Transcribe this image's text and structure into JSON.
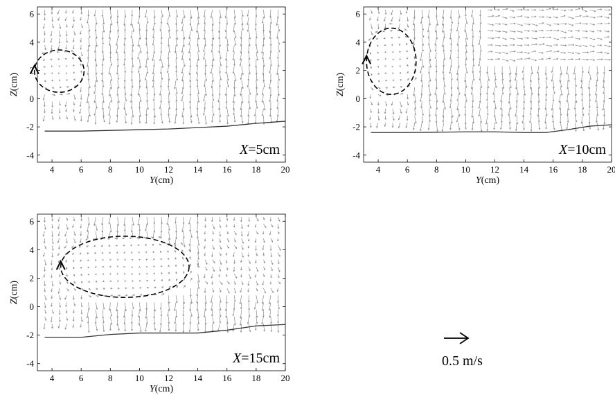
{
  "chart_data": [
    {
      "type": "quiver",
      "panel_label": "X=5cm",
      "panel_label_var": "X",
      "panel_label_val": "=5cm",
      "xlabel_var": "Y",
      "xlabel_unit": "(cm)",
      "ylabel_var": "Z",
      "ylabel_unit": "(cm)",
      "xlim": [
        3,
        20
      ],
      "ylim": [
        -4.5,
        6.5
      ],
      "xticks": [
        "4",
        "6",
        "8",
        "10",
        "12",
        "14",
        "16",
        "18",
        "20"
      ],
      "yticks": [
        "-4",
        "-2",
        "0",
        "2",
        "4",
        "6"
      ],
      "bed_profile": {
        "y": [
          3.5,
          6,
          8,
          10,
          12,
          14,
          16,
          18,
          20
        ],
        "z": [
          -2.3,
          -2.3,
          -2.25,
          -2.2,
          -2.15,
          -2.05,
          -1.95,
          -1.75,
          -1.6
        ]
      },
      "vortex": {
        "center_y": 4.5,
        "center_z": 1.95,
        "radius_y": 1.7,
        "radius_z": 1.5
      },
      "field": {
        "y_start": 3.5,
        "y_end": 19.5,
        "y_step": 0.5,
        "z_top": 6.3,
        "z_bottom": -1.4,
        "z_step": 0.5
      }
    },
    {
      "type": "quiver",
      "panel_label": "X=10cm",
      "panel_label_var": "X",
      "panel_label_val": "=10cm",
      "xlabel_var": "Y",
      "xlabel_unit": "(cm)",
      "ylabel_var": "Z",
      "ylabel_unit": "(cm)",
      "xlim": [
        3,
        20
      ],
      "ylim": [
        -4.5,
        6.5
      ],
      "xticks": [
        "4",
        "6",
        "8",
        "10",
        "12",
        "14",
        "16",
        "18",
        "20"
      ],
      "yticks": [
        "-4",
        "-2",
        "0",
        "2",
        "4",
        "6"
      ],
      "bed_profile": {
        "y": [
          3.5,
          6,
          8,
          10,
          12,
          14,
          15.5,
          17,
          18.5,
          20
        ],
        "z": [
          -2.4,
          -2.4,
          -2.38,
          -2.35,
          -2.35,
          -2.4,
          -2.4,
          -2.2,
          -1.95,
          -1.85
        ]
      },
      "vortex": {
        "center_y": 4.9,
        "center_z": 2.65,
        "radius_y": 1.7,
        "radius_z": 2.35
      },
      "field": {
        "y_start": 3.5,
        "y_end": 19.5,
        "y_step": 0.5,
        "z_top": 6.3,
        "z_bottom": -1.8,
        "z_step": 0.5
      }
    },
    {
      "type": "quiver",
      "panel_label": "X=15cm",
      "panel_label_var": "X",
      "panel_label_val": "=15cm",
      "xlabel_var": "Y",
      "xlabel_unit": "(cm)",
      "ylabel_var": "Z",
      "ylabel_unit": "(cm)",
      "xlim": [
        3,
        20
      ],
      "ylim": [
        -4.5,
        6.5
      ],
      "xticks": [
        "4",
        "6",
        "8",
        "10",
        "12",
        "14",
        "16",
        "18",
        "20"
      ],
      "yticks": [
        "-4",
        "-2",
        "0",
        "2",
        "4",
        "6"
      ],
      "bed_profile": {
        "y": [
          3.5,
          6,
          8,
          10,
          12,
          14,
          16,
          18,
          20
        ],
        "z": [
          -2.15,
          -2.15,
          -1.95,
          -1.85,
          -1.85,
          -1.85,
          -1.65,
          -1.35,
          -1.25
        ]
      },
      "vortex": {
        "center_y": 9.0,
        "center_z": 2.8,
        "radius_y": 4.4,
        "radius_z": 2.15
      },
      "field": {
        "y_start": 3.5,
        "y_end": 19.5,
        "y_step": 0.5,
        "z_top": 6.3,
        "z_bottom": -1.4,
        "z_step": 0.5
      }
    }
  ],
  "scale_label": "0.5 m/s",
  "scale_value_ms": 0.5,
  "colors": {
    "vectors": "#8a8a8a",
    "bed": "#333333",
    "vortex": "#000000"
  }
}
